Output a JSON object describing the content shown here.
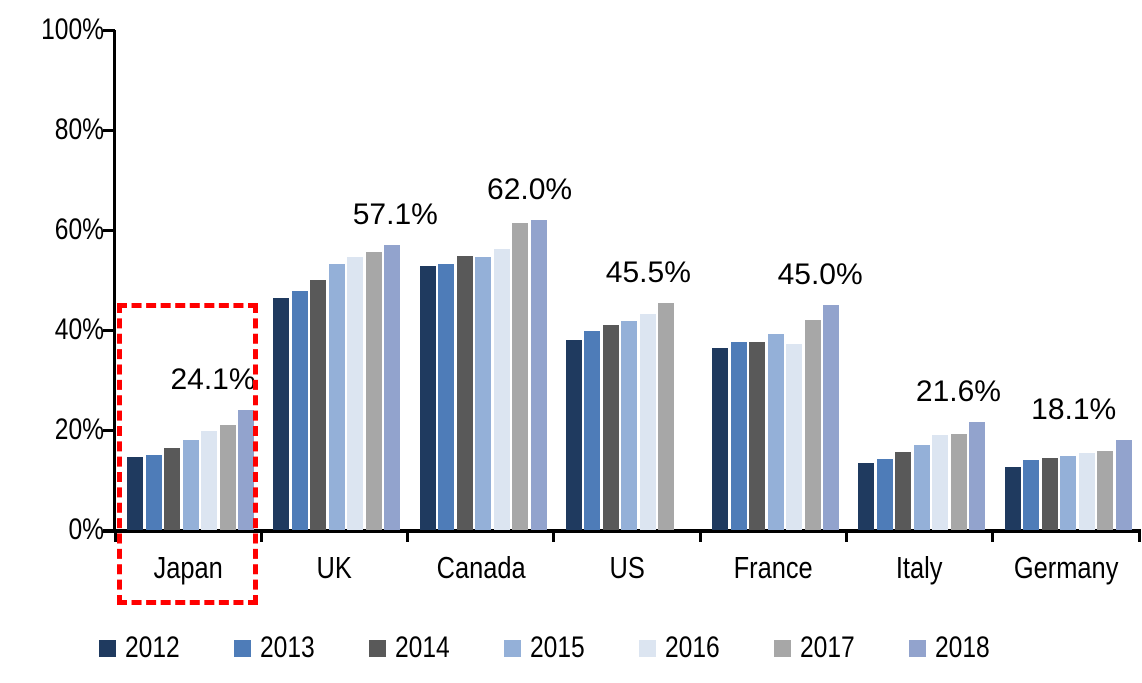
{
  "chart_data": {
    "type": "bar",
    "title": "",
    "xlabel": "",
    "ylabel": "",
    "categories": [
      "Japan",
      "UK",
      "Canada",
      "US",
      "France",
      "Italy",
      "Germany"
    ],
    "series": [
      {
        "name": "2012",
        "color": "#1F3A5F",
        "values": [
          14.6,
          46.4,
          52.9,
          38.0,
          36.4,
          13.4,
          12.6
        ]
      },
      {
        "name": "2013",
        "color": "#4E7CB8",
        "values": [
          15.0,
          47.8,
          53.2,
          39.8,
          37.6,
          14.2,
          14.0
        ]
      },
      {
        "name": "2014",
        "color": "#595959",
        "values": [
          16.4,
          50.0,
          54.8,
          41.0,
          37.6,
          15.6,
          14.4
        ]
      },
      {
        "name": "2015",
        "color": "#94B0D8",
        "values": [
          18.1,
          53.2,
          54.6,
          41.8,
          39.2,
          17.0,
          14.9
        ]
      },
      {
        "name": "2016",
        "color": "#DCE5F1",
        "values": [
          19.9,
          54.6,
          56.2,
          43.2,
          37.3,
          19.0,
          15.4
        ]
      },
      {
        "name": "2017",
        "color": "#A7A7A7",
        "values": [
          21.0,
          55.7,
          61.4,
          45.5,
          42.1,
          19.3,
          15.9
        ]
      },
      {
        "name": "2018",
        "color": "#92A3CD",
        "values": [
          24.1,
          57.1,
          62.0,
          null,
          45.0,
          21.6,
          18.1
        ]
      }
    ],
    "data_labels": [
      {
        "category": "Japan",
        "series": "2018",
        "text": "24.1%",
        "dx": -33
      },
      {
        "category": "UK",
        "series": "2018",
        "text": "57.1%",
        "dx": 3
      },
      {
        "category": "Canada",
        "series": "2018",
        "text": "62.0%",
        "dx": -9
      },
      {
        "category": "US",
        "series": "2017",
        "text": "45.5%",
        "dx": -18
      },
      {
        "category": "France",
        "series": "2018",
        "text": "45.0%",
        "dx": -11
      },
      {
        "category": "Italy",
        "series": "2018",
        "text": "21.6%",
        "dx": -19
      },
      {
        "category": "Germany",
        "series": "2018",
        "text": "18.1%",
        "dx": -50
      }
    ],
    "ylim": [
      0,
      100
    ],
    "yticks": [
      "0%",
      "20%",
      "40%",
      "60%",
      "80%",
      "100%"
    ],
    "grid": false,
    "legend_position": "bottom",
    "legend_entries": [
      "2012",
      "2013",
      "2014",
      "2015",
      "2016",
      "2017",
      "2018"
    ],
    "annotation": {
      "type": "dashed-rect",
      "color": "#FF0000",
      "highlights_category": "Japan",
      "top_value_pct": 45.4
    },
    "axis_color": "#000000",
    "background_color": "#FFFFFF"
  }
}
